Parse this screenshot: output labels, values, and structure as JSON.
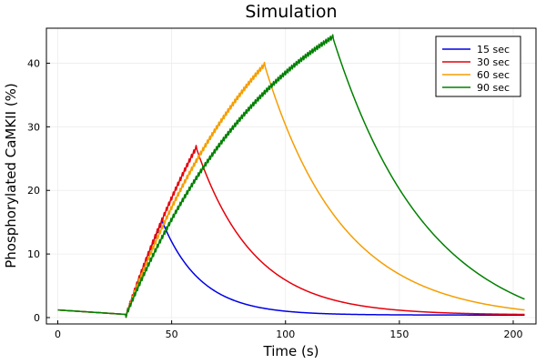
{
  "chart_data": {
    "type": "line",
    "title": "Simulation",
    "xlabel": "Time (s)",
    "ylabel": "Phosphorylated CaMKII (%)",
    "xlim": [
      -5,
      210
    ],
    "ylim": [
      -1,
      45.5
    ],
    "xticks": [
      0,
      50,
      100,
      150,
      200
    ],
    "yticks": [
      0,
      10,
      20,
      30,
      40
    ],
    "grid": true,
    "legend_position": "top-right",
    "baseline": {
      "start_value": 1.2,
      "stim_start": 30,
      "pre_stim_value": 0.5,
      "rise_plateau": 70,
      "rise_tau": 69,
      "oscillation_period": 1
    },
    "series": [
      {
        "name": "15 sec",
        "color": "#0000e6",
        "stim_end": 46,
        "peak": 15.0,
        "decay_tau": 17,
        "end_value": 0.4
      },
      {
        "name": "30 sec",
        "color": "#e6000a",
        "stim_end": 61,
        "peak": 26.5,
        "decay_tau": 25,
        "end_value": 0.5
      },
      {
        "name": "60 sec",
        "color": "#f59e00",
        "stim_end": 91,
        "peak": 39.5,
        "decay_tau": 34,
        "end_value": 1.2
      },
      {
        "name": "90 sec",
        "color": "#008000",
        "stim_end": 121,
        "peak": 43.8,
        "decay_tau": 42,
        "end_value": 2.9
      }
    ],
    "x_end": 205
  }
}
